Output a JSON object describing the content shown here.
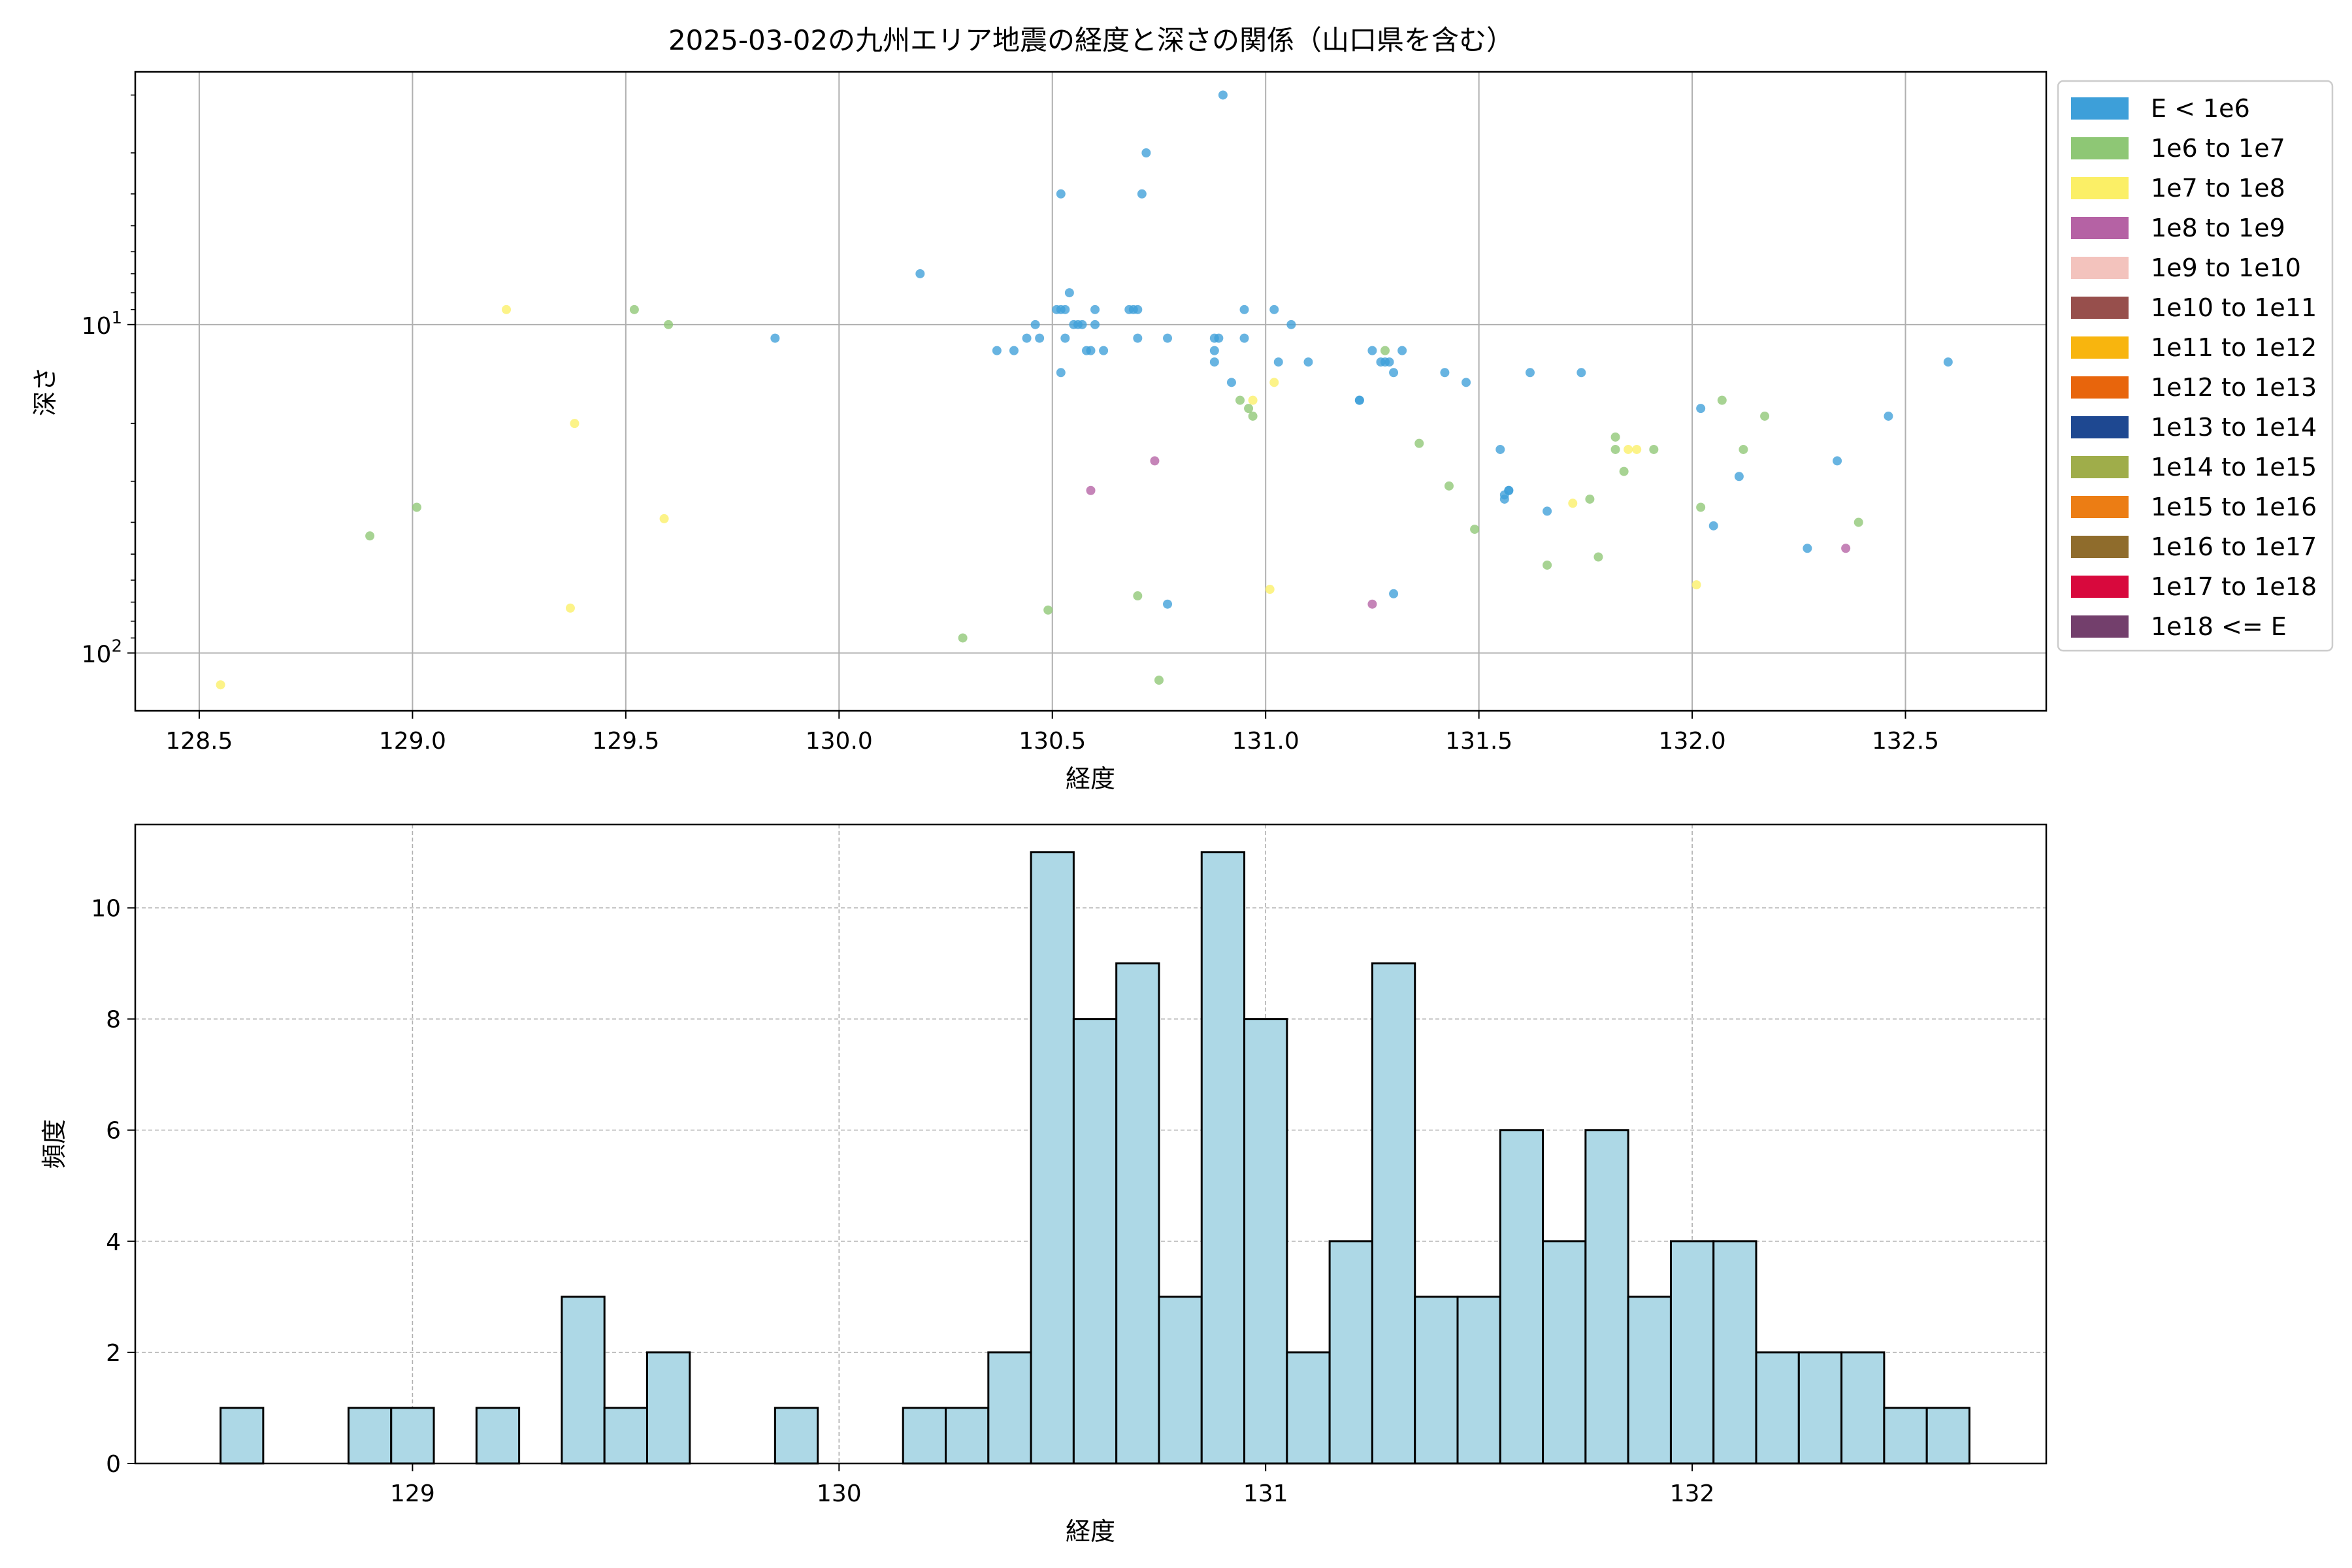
{
  "colors": {
    "background": "#ffffff",
    "grid_major": "#b0b0b0",
    "hist_fill": "#add8e6",
    "hist_edge": "#000000"
  },
  "chart_data": [
    {
      "type": "scatter",
      "title": "2025-03-02の九州エリア地震の経度と深さの関係（山口県を含む）",
      "xlabel": "経度",
      "ylabel": "深さ",
      "xlim": [
        128.35,
        132.83
      ],
      "ylim": [
        150,
        1.7
      ],
      "y_scale": "log",
      "y_inverted": true,
      "x_ticks": [
        128.5,
        129.0,
        129.5,
        130.0,
        130.5,
        131.0,
        131.5,
        132.0,
        132.5
      ],
      "x_tick_labels": [
        "128.5",
        "129.0",
        "129.5",
        "130.0",
        "130.5",
        "131.0",
        "131.5",
        "132.0",
        "132.5"
      ],
      "y_ticks": [
        10,
        100
      ],
      "y_tick_labels": [
        [
          "10",
          "1"
        ],
        [
          "10",
          "2"
        ]
      ],
      "grid": true,
      "legend_position": "outside-right-top",
      "legend": [
        {
          "name": "E < 1e6",
          "color": "#3d9fd9"
        },
        {
          "name": "1e6 to 1e7",
          "color": "#8ec775"
        },
        {
          "name": "1e7 to 1e8",
          "color": "#fbef66"
        },
        {
          "name": "1e8 to 1e9",
          "color": "#b562a4"
        },
        {
          "name": "1e9 to 1e10",
          "color": "#f3c3bd"
        },
        {
          "name": "1e10 to 1e11",
          "color": "#974f4c"
        },
        {
          "name": "1e11 to 1e12",
          "color": "#f8b50e"
        },
        {
          "name": "1e12 to 1e13",
          "color": "#e8650c"
        },
        {
          "name": "1e13 to 1e14",
          "color": "#1e4891"
        },
        {
          "name": "1e14 to 1e15",
          "color": "#9fad4a"
        },
        {
          "name": "1e15 to 1e16",
          "color": "#ec7d14"
        },
        {
          "name": "1e16 to 1e17",
          "color": "#8f6c2c"
        },
        {
          "name": "1e17 to 1e18",
          "color": "#d8093d"
        },
        {
          "name": "1e18 <= E",
          "color": "#733f6c"
        }
      ],
      "series": [
        {
          "legend_index": 0,
          "points": [
            [
              129.85,
              11
            ],
            [
              130.19,
              7
            ],
            [
              130.37,
              12
            ],
            [
              130.41,
              12
            ],
            [
              130.44,
              11
            ],
            [
              130.46,
              10
            ],
            [
              130.47,
              11
            ],
            [
              130.51,
              9
            ],
            [
              130.52,
              9
            ],
            [
              130.52,
              4
            ],
            [
              130.52,
              14
            ],
            [
              130.53,
              9
            ],
            [
              130.53,
              11
            ],
            [
              130.54,
              8
            ],
            [
              130.55,
              10
            ],
            [
              130.56,
              10
            ],
            [
              130.57,
              10
            ],
            [
              130.58,
              12
            ],
            [
              130.59,
              12
            ],
            [
              130.6,
              10
            ],
            [
              130.6,
              9
            ],
            [
              130.62,
              12
            ],
            [
              130.68,
              9
            ],
            [
              130.69,
              9
            ],
            [
              130.7,
              9
            ],
            [
              130.7,
              11
            ],
            [
              130.71,
              4
            ],
            [
              130.72,
              3
            ],
            [
              130.77,
              11
            ],
            [
              130.77,
              71
            ],
            [
              130.88,
              13
            ],
            [
              130.88,
              12
            ],
            [
              130.88,
              11
            ],
            [
              130.89,
              11
            ],
            [
              130.9,
              2
            ],
            [
              130.92,
              15
            ],
            [
              130.95,
              11
            ],
            [
              130.95,
              9
            ],
            [
              131.02,
              9
            ],
            [
              131.03,
              13
            ],
            [
              131.06,
              10
            ],
            [
              131.1,
              13
            ],
            [
              131.22,
              17
            ],
            [
              131.22,
              17
            ],
            [
              131.25,
              12
            ],
            [
              131.27,
              13
            ],
            [
              131.28,
              13
            ],
            [
              131.29,
              13
            ],
            [
              131.3,
              14
            ],
            [
              131.3,
              66
            ],
            [
              131.32,
              12
            ],
            [
              131.42,
              14
            ],
            [
              131.47,
              15
            ],
            [
              131.55,
              24
            ],
            [
              131.56,
              34
            ],
            [
              131.56,
              33
            ],
            [
              131.57,
              32
            ],
            [
              131.57,
              32
            ],
            [
              131.62,
              14
            ],
            [
              131.66,
              37
            ],
            [
              131.74,
              14
            ],
            [
              132.02,
              18
            ],
            [
              132.05,
              41
            ],
            [
              132.11,
              29
            ],
            [
              132.27,
              48
            ],
            [
              132.34,
              26
            ],
            [
              132.46,
              19
            ],
            [
              132.6,
              13
            ]
          ]
        },
        {
          "legend_index": 1,
          "points": [
            [
              128.9,
              44
            ],
            [
              129.01,
              36
            ],
            [
              129.52,
              9
            ],
            [
              129.6,
              10
            ],
            [
              130.29,
              90
            ],
            [
              130.49,
              74
            ],
            [
              130.7,
              67
            ],
            [
              130.75,
              121
            ],
            [
              130.94,
              17
            ],
            [
              130.96,
              18
            ],
            [
              130.97,
              19
            ],
            [
              131.28,
              12
            ],
            [
              131.36,
              23
            ],
            [
              131.43,
              31
            ],
            [
              131.49,
              42
            ],
            [
              131.66,
              54
            ],
            [
              131.76,
              34
            ],
            [
              131.78,
              51
            ],
            [
              131.82,
              22
            ],
            [
              131.82,
              24
            ],
            [
              131.84,
              28
            ],
            [
              131.91,
              24
            ],
            [
              132.02,
              36
            ],
            [
              132.07,
              17
            ],
            [
              132.12,
              24
            ],
            [
              132.17,
              19
            ],
            [
              132.39,
              40
            ]
          ]
        },
        {
          "legend_index": 2,
          "points": [
            [
              128.55,
              125
            ],
            [
              129.22,
              9
            ],
            [
              129.37,
              73
            ],
            [
              129.38,
              20
            ],
            [
              129.59,
              39
            ],
            [
              130.97,
              17
            ],
            [
              131.01,
              64
            ],
            [
              131.02,
              15
            ],
            [
              131.72,
              35
            ],
            [
              131.85,
              24
            ],
            [
              131.87,
              24
            ],
            [
              132.01,
              62
            ]
          ]
        },
        {
          "legend_index": 3,
          "points": [
            [
              130.59,
              32
            ],
            [
              130.74,
              26
            ],
            [
              131.25,
              71
            ],
            [
              132.36,
              48
            ]
          ]
        }
      ]
    },
    {
      "type": "bar",
      "xlabel": "経度",
      "ylabel": "頻度",
      "xlim": [
        128.35,
        132.83
      ],
      "ylim": [
        0,
        11.5
      ],
      "x_ticks": [
        129,
        130,
        131,
        132
      ],
      "x_tick_labels": [
        "129",
        "130",
        "131",
        "132"
      ],
      "y_ticks": [
        0,
        2,
        4,
        6,
        8,
        10
      ],
      "y_tick_labels": [
        "0",
        "2",
        "4",
        "6",
        "8",
        "10"
      ],
      "grid": "dashed",
      "bin_start": 128.55,
      "bin_width": 0.1,
      "values": [
        1,
        0,
        0,
        1,
        1,
        0,
        1,
        0,
        3,
        1,
        2,
        0,
        0,
        1,
        0,
        0,
        1,
        1,
        2,
        11,
        8,
        9,
        3,
        11,
        8,
        2,
        4,
        9,
        3,
        3,
        6,
        4,
        6,
        3,
        4,
        4,
        2,
        2,
        2,
        1,
        1
      ]
    }
  ]
}
